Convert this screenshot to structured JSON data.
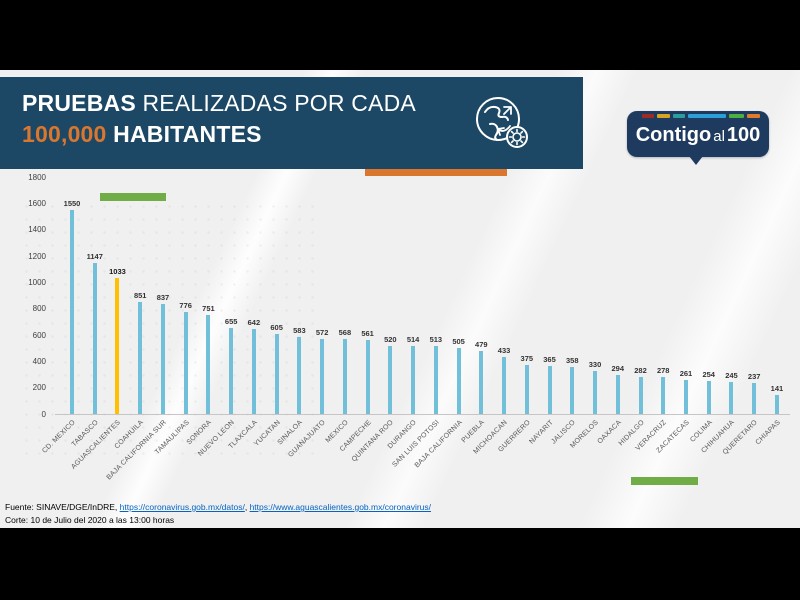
{
  "header": {
    "line1_bold": "PRUEBAS",
    "line1_rest": " REALIZADAS POR CADA",
    "line2_accent": "100,000",
    "line2_rest": " HABITANTES",
    "bg_color": "#1c4865",
    "accent_color": "#d9772f",
    "icon": "globe-virus-icon"
  },
  "logo": {
    "word_bold": "Contigo",
    "word_light": "al",
    "word_number": "100",
    "bg_color": "#1e3a5f",
    "strip_colors": [
      "#9e2b25",
      "#d9a521",
      "#2a9d9c",
      "#2d9fd8",
      "#4caf3f",
      "#e07b2a"
    ],
    "strip_widths": [
      12,
      13,
      12,
      38,
      15,
      13
    ]
  },
  "chart_data": {
    "type": "bar",
    "title": "PRUEBAS REALIZADAS POR CADA 100,000 HABITANTES",
    "categories": [
      "CD. MEXICO",
      "TABASCO",
      "AGUASCALIENTES",
      "COAHUILA",
      "BAJA CALIFORNIA SUR",
      "TAMAULIPAS",
      "SONORA",
      "NUEVO LEON",
      "TLAXCALA",
      "YUCATAN",
      "SINALOA",
      "GUANAJUATO",
      "MEXICO",
      "CAMPECHE",
      "QUINTANA ROO",
      "DURANGO",
      "SAN LUIS POTOSI",
      "BAJA CALIFORNIA",
      "PUEBLA",
      "MICHOACAN",
      "GUERRERO",
      "NAYARIT",
      "JALISCO",
      "MORELOS",
      "OAXACA",
      "HIDALGO",
      "VERACRUZ",
      "ZACATECAS",
      "COLIMA",
      "CHIHUAHUA",
      "QUERETARO",
      "CHIAPAS"
    ],
    "values": [
      1550,
      1147,
      1033,
      851,
      837,
      776,
      751,
      655,
      642,
      605,
      583,
      572,
      568,
      561,
      520,
      514,
      513,
      505,
      479,
      433,
      375,
      365,
      358,
      330,
      294,
      282,
      278,
      261,
      254,
      245,
      237,
      141
    ],
    "highlight_category": "AGUASCALIENTES",
    "highlight_color": "#ffc000",
    "bar_color": "#72bfd9",
    "xlabel": "",
    "ylabel": "",
    "ylim": [
      0,
      1800
    ],
    "ytick_step": 200,
    "grid": false,
    "legend": false,
    "value_labels": true
  },
  "footer": {
    "source_prefix": "Fuente: SINAVE/DGE/InDRE, ",
    "link1": "https://coronavirus.gob.mx/datos/",
    "separator": ", ",
    "link2": "https://www.aguascalientes.gob.mx/coronavirus/",
    "cutoff": "Corte: 10 de Julio del 2020 a las 13:00 horas"
  }
}
